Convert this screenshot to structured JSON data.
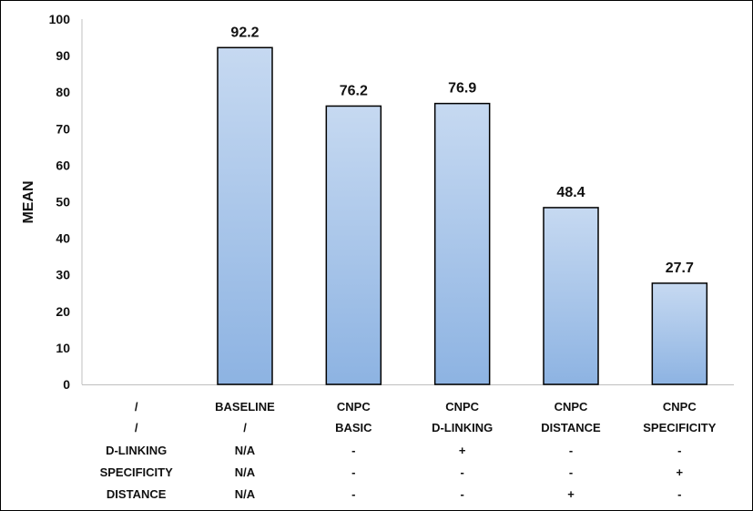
{
  "chart_data": {
    "type": "bar",
    "title": "",
    "xlabel": "",
    "ylabel": "MEAN",
    "ylim": [
      0,
      100
    ],
    "yticks": [
      "0",
      "10",
      "20",
      "30",
      "40",
      "50",
      "60",
      "70",
      "80",
      "90",
      "100"
    ],
    "grid": false,
    "legend": "none",
    "bar_color": "#a9c4e8",
    "categories": [
      "/",
      "BASELINE",
      "CNPC BASIC",
      "CNPC D-LINKING",
      "CNPC DISTANCE",
      "CNPC SPECIFICITY"
    ],
    "values": [
      null,
      92.2,
      76.2,
      76.9,
      48.4,
      27.7
    ],
    "data_labels": [
      "",
      "92.2",
      "76.2",
      "76.9",
      "48.4",
      "27.7"
    ],
    "category_lines": [
      [
        "/",
        "BASELINE",
        "CNPC",
        "CNPC",
        "CNPC",
        "CNPC"
      ],
      [
        "/",
        "/",
        "BASIC",
        "D-LINKING",
        "DISTANCE",
        "SPECIFICITY"
      ]
    ],
    "table_rows": [
      {
        "label": "D-LINKING",
        "cells": [
          "N/A",
          "-",
          "+",
          "-",
          "-"
        ]
      },
      {
        "label": "SPECIFICITY",
        "cells": [
          "N/A",
          "-",
          "-",
          "-",
          "+"
        ]
      },
      {
        "label": "DISTANCE",
        "cells": [
          "N/A",
          "-",
          "-",
          "+",
          "-"
        ]
      }
    ]
  }
}
